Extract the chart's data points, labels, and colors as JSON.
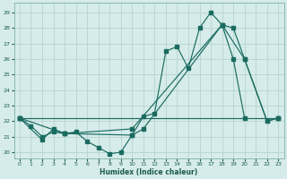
{
  "xlabel": "Humidex (Indice chaleur)",
  "xlim": [
    -0.5,
    23.5
  ],
  "ylim": [
    19.6,
    29.6
  ],
  "xticks": [
    0,
    1,
    2,
    3,
    4,
    5,
    6,
    7,
    8,
    9,
    10,
    11,
    12,
    13,
    14,
    15,
    16,
    17,
    18,
    19,
    20,
    21,
    22,
    23
  ],
  "yticks": [
    20,
    21,
    22,
    23,
    24,
    25,
    26,
    27,
    28,
    29
  ],
  "bg_color": "#d6ecea",
  "grid_color": "#b5d4d0",
  "line_color": "#1a6b60",
  "series": [
    {
      "x": [
        0,
        1,
        2,
        3,
        4,
        5,
        6,
        7,
        8,
        9,
        10,
        11,
        12,
        13,
        14,
        15,
        16,
        17,
        18,
        19,
        20
      ],
      "y": [
        22.2,
        21.7,
        21.0,
        21.3,
        21.2,
        21.3,
        20.7,
        20.3,
        19.9,
        20.0,
        21.1,
        22.3,
        22.5,
        26.5,
        26.8,
        25.4,
        28.0,
        29.0,
        28.2,
        26.0,
        22.2
      ]
    },
    {
      "x": [
        0,
        2,
        3,
        4,
        10,
        11,
        18,
        19,
        20,
        22,
        23
      ],
      "y": [
        22.2,
        20.8,
        21.5,
        21.2,
        21.1,
        21.5,
        28.2,
        28.0,
        26.0,
        22.0,
        22.2
      ]
    },
    {
      "x": [
        0,
        4,
        10,
        18,
        20,
        22,
        23
      ],
      "y": [
        22.2,
        21.2,
        21.5,
        28.2,
        26.0,
        22.0,
        22.2
      ]
    },
    {
      "x": [
        0,
        23
      ],
      "y": [
        22.2,
        22.2
      ]
    }
  ]
}
